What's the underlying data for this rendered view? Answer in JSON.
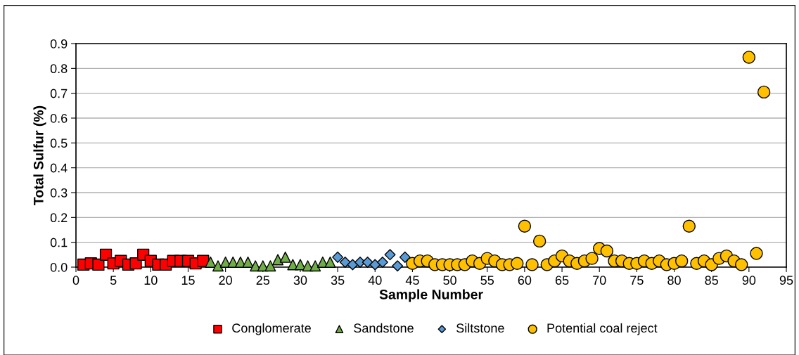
{
  "chart_data": {
    "type": "scatter",
    "xlabel": "Sample Number",
    "ylabel": "Total Sulfur (%)",
    "xlim": [
      0,
      95
    ],
    "xticks": [
      0,
      5,
      10,
      15,
      20,
      25,
      30,
      35,
      40,
      45,
      50,
      55,
      60,
      65,
      70,
      75,
      80,
      85,
      90,
      95
    ],
    "ylim": [
      0,
      0.9
    ],
    "yticks": [
      {
        "value": 0,
        "label": "0.0"
      },
      0.1,
      0.2,
      0.3,
      0.4,
      0.5,
      0.6,
      0.7,
      0.8,
      0.9
    ],
    "grid": "y",
    "legend": "bottom",
    "series": [
      {
        "name": "Conglomerate",
        "color": "#ff0000",
        "marker": "square",
        "x": [
          1,
          2,
          3,
          4,
          5,
          6,
          7,
          8,
          9,
          10,
          11,
          12,
          13,
          14,
          15,
          16,
          17
        ],
        "values": [
          0.01,
          0.015,
          0.01,
          0.05,
          0.015,
          0.025,
          0.01,
          0.015,
          0.05,
          0.025,
          0.01,
          0.01,
          0.025,
          0.025,
          0.025,
          0.015,
          0.025
        ]
      },
      {
        "name": "Sandstone",
        "color": "#70ad47",
        "marker": "triangle",
        "x": [
          18,
          19,
          20,
          21,
          22,
          23,
          24,
          25,
          26,
          27,
          28,
          29,
          30,
          31,
          32,
          33,
          34
        ],
        "values": [
          0.02,
          0.005,
          0.02,
          0.02,
          0.02,
          0.02,
          0.005,
          0.005,
          0.005,
          0.03,
          0.04,
          0.01,
          0.01,
          0.005,
          0.005,
          0.02,
          0.02
        ]
      },
      {
        "name": "Siltstone",
        "color": "#5b9bd5",
        "marker": "diamond",
        "x": [
          35,
          36,
          37,
          38,
          39,
          40,
          41,
          42,
          43,
          44
        ],
        "values": [
          0.04,
          0.02,
          0.01,
          0.02,
          0.02,
          0.01,
          0.02,
          0.05,
          0.005,
          0.04
        ]
      },
      {
        "name": "Potential coal reject",
        "color": "#ffc000",
        "marker": "circle",
        "x": [
          45,
          46,
          47,
          48,
          49,
          50,
          51,
          52,
          53,
          54,
          55,
          56,
          57,
          58,
          59,
          60,
          61,
          62,
          63,
          64,
          65,
          66,
          67,
          68,
          69,
          70,
          71,
          72,
          73,
          74,
          75,
          76,
          77,
          78,
          79,
          80,
          81,
          82,
          83,
          84,
          85,
          86,
          87,
          88,
          89,
          90,
          91,
          92
        ],
        "values": [
          0.015,
          0.025,
          0.025,
          0.01,
          0.01,
          0.01,
          0.01,
          0.01,
          0.025,
          0.015,
          0.035,
          0.025,
          0.01,
          0.01,
          0.015,
          0.165,
          0.01,
          0.105,
          0.01,
          0.025,
          0.045,
          0.025,
          0.015,
          0.025,
          0.035,
          0.075,
          0.065,
          0.025,
          0.025,
          0.015,
          0.015,
          0.025,
          0.015,
          0.025,
          0.01,
          0.015,
          0.025,
          0.165,
          0.015,
          0.025,
          0.01,
          0.035,
          0.045,
          0.025,
          0.01,
          0.845,
          0.055,
          0.705
        ]
      }
    ]
  }
}
